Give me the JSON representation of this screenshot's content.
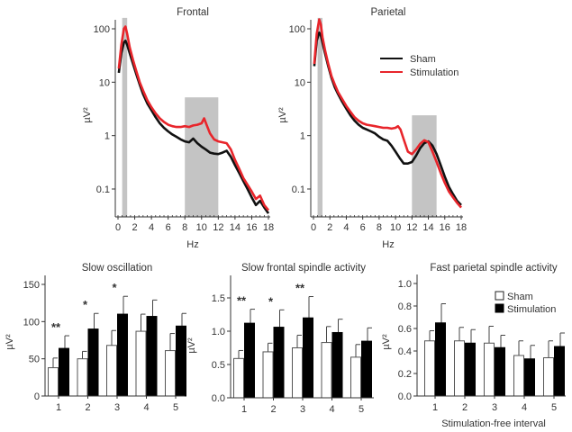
{
  "chart_data": [
    {
      "id": "frontal",
      "type": "line",
      "title": "Frontal",
      "xlabel": "Hz",
      "ylabel": "µV²",
      "yscale": "log",
      "xlim": [
        0,
        18
      ],
      "ylim": [
        0.03,
        160
      ],
      "xticks": [
        "0",
        "2",
        "4",
        "6",
        "8",
        "10",
        "12",
        "14",
        "16",
        "18"
      ],
      "yticks": [
        {
          "v": 100,
          "label": "100"
        },
        {
          "v": 10,
          "label": "10"
        },
        {
          "v": 1,
          "label": "1"
        },
        {
          "v": 0.1,
          "label": "0.1"
        }
      ],
      "shaded_bands": [
        {
          "x0": 0.5,
          "x1": 1.1,
          "ytop": 160
        },
        {
          "x0": 8,
          "x1": 12,
          "ytop": 5.2
        }
      ],
      "series": [
        {
          "name": "Sham",
          "color": "#111111",
          "x": [
            0.1,
            0.4,
            0.7,
            0.9,
            1.1,
            1.4,
            1.8,
            2.2,
            2.6,
            3,
            3.5,
            4,
            4.5,
            5,
            5.5,
            6,
            6.5,
            7,
            7.5,
            8,
            8.5,
            9,
            9.5,
            10,
            10.5,
            11,
            11.5,
            12,
            12.5,
            13,
            13.5,
            14,
            14.5,
            15,
            15.5,
            16,
            16.5,
            17,
            17.5,
            18
          ],
          "y": [
            15,
            35,
            55,
            60,
            50,
            35,
            22,
            14,
            9,
            6,
            4,
            3,
            2.2,
            1.7,
            1.4,
            1.2,
            1.05,
            0.95,
            0.85,
            0.78,
            0.75,
            0.88,
            0.72,
            0.62,
            0.55,
            0.48,
            0.46,
            0.45,
            0.48,
            0.52,
            0.4,
            0.28,
            0.2,
            0.14,
            0.1,
            0.07,
            0.05,
            0.06,
            0.045,
            0.035
          ]
        },
        {
          "name": "Stimulation",
          "color": "#e8252b",
          "x": [
            0.1,
            0.4,
            0.7,
            0.9,
            1.1,
            1.4,
            1.8,
            2.2,
            2.6,
            3,
            3.5,
            4,
            4.5,
            5,
            5.5,
            6,
            6.5,
            7,
            7.5,
            8,
            8.5,
            9,
            9.5,
            10,
            10.3,
            10.6,
            11,
            11.5,
            12,
            12.5,
            13,
            13.5,
            14,
            14.5,
            15,
            15.5,
            16,
            16.5,
            17,
            17.5,
            18
          ],
          "y": [
            18,
            50,
            100,
            110,
            80,
            45,
            26,
            16,
            10,
            7,
            4.6,
            3.4,
            2.6,
            2.1,
            1.8,
            1.6,
            1.5,
            1.45,
            1.45,
            1.5,
            1.45,
            1.55,
            1.6,
            1.7,
            2.1,
            1.6,
            1.1,
            0.85,
            0.78,
            0.75,
            0.72,
            0.55,
            0.35,
            0.24,
            0.16,
            0.12,
            0.09,
            0.065,
            0.075,
            0.05,
            0.04
          ]
        }
      ]
    },
    {
      "id": "parietal",
      "type": "line",
      "title": "Parietal",
      "xlabel": "Hz",
      "ylabel": "µV²",
      "yscale": "log",
      "xlim": [
        0,
        18
      ],
      "ylim": [
        0.03,
        160
      ],
      "xticks": [
        "0",
        "2",
        "4",
        "6",
        "8",
        "10",
        "12",
        "14",
        "16",
        "18"
      ],
      "yticks": [
        {
          "v": 100,
          "label": "100"
        },
        {
          "v": 10,
          "label": "10"
        },
        {
          "v": 1,
          "label": "1"
        },
        {
          "v": 0.1,
          "label": "0.1"
        }
      ],
      "shaded_bands": [
        {
          "x0": 0.5,
          "x1": 1.1,
          "ytop": 160
        },
        {
          "x0": 12,
          "x1": 15,
          "ytop": 2.4
        }
      ],
      "legend": {
        "position": "top-right",
        "entries": [
          {
            "name": "Sham",
            "color": "#111111"
          },
          {
            "name": "Stimulation",
            "color": "#e8252b"
          }
        ]
      },
      "series": [
        {
          "name": "Sham",
          "color": "#111111",
          "x": [
            0.1,
            0.4,
            0.7,
            0.9,
            1.1,
            1.4,
            1.8,
            2.2,
            2.6,
            3,
            3.5,
            4,
            4.5,
            5,
            5.5,
            6,
            6.5,
            7,
            7.5,
            8,
            8.5,
            9,
            9.5,
            10,
            10.5,
            11,
            11.5,
            12,
            12.5,
            13,
            13.5,
            14,
            14.5,
            15,
            15.5,
            16,
            16.5,
            17,
            17.5,
            18
          ],
          "y": [
            20,
            60,
            85,
            75,
            55,
            35,
            20,
            12,
            8,
            6,
            4.3,
            3.2,
            2.4,
            1.9,
            1.6,
            1.4,
            1.3,
            1.2,
            1.1,
            0.95,
            0.85,
            0.8,
            0.65,
            0.5,
            0.38,
            0.3,
            0.3,
            0.32,
            0.42,
            0.58,
            0.72,
            0.78,
            0.65,
            0.45,
            0.28,
            0.17,
            0.11,
            0.08,
            0.06,
            0.05
          ]
        },
        {
          "name": "Stimulation",
          "color": "#e8252b",
          "x": [
            0.1,
            0.4,
            0.7,
            0.9,
            1.1,
            1.4,
            1.8,
            2.2,
            2.6,
            3,
            3.5,
            4,
            4.5,
            5,
            5.5,
            6,
            6.5,
            7,
            7.5,
            8,
            8.5,
            9,
            9.5,
            10,
            10.3,
            10.6,
            11,
            11.5,
            12,
            12.5,
            13,
            13.5,
            14,
            14.5,
            15,
            15.5,
            16,
            16.5,
            17,
            17.5,
            18
          ],
          "y": [
            22,
            80,
            150,
            120,
            70,
            40,
            22,
            13,
            9,
            6.5,
            4.8,
            3.6,
            2.8,
            2.2,
            1.9,
            1.7,
            1.6,
            1.55,
            1.5,
            1.45,
            1.4,
            1.4,
            1.35,
            1.4,
            1.5,
            1.3,
            0.85,
            0.5,
            0.45,
            0.55,
            0.7,
            0.82,
            0.75,
            0.5,
            0.32,
            0.2,
            0.13,
            0.09,
            0.07,
            0.055,
            0.045
          ]
        }
      ]
    },
    {
      "id": "slow-oscillation",
      "type": "bar",
      "title": "Slow oscillation",
      "xlabel": "",
      "ylabel": "µV²",
      "ylim": [
        0,
        160
      ],
      "yticks": [
        "0",
        "50",
        "100",
        "150"
      ],
      "ytick_values": [
        0,
        50,
        100,
        150
      ],
      "categories": [
        "1",
        "2",
        "3",
        "4",
        "5"
      ],
      "series": [
        {
          "name": "Sham",
          "fill": "#ffffff",
          "values": [
            38,
            50,
            68,
            87,
            61
          ],
          "errors": [
            13,
            10,
            20,
            23,
            23
          ]
        },
        {
          "name": "Stimulation",
          "fill": "#000000",
          "values": [
            64,
            90,
            110,
            107,
            94
          ],
          "errors": [
            17,
            21,
            24,
            22,
            17
          ]
        }
      ],
      "significance": [
        "**",
        "*",
        "*",
        "",
        ""
      ]
    },
    {
      "id": "slow-frontal-spindle",
      "type": "bar",
      "title": "Slow frontal spindle activity",
      "xlabel": "",
      "ylabel": "µV²",
      "ylim": [
        0,
        1.85
      ],
      "yticks": [
        "0.0",
        "0.5",
        "1.0",
        "1.5"
      ],
      "ytick_values": [
        0,
        0.5,
        1.0,
        1.5
      ],
      "categories": [
        "1",
        "2",
        "3",
        "4",
        "5"
      ],
      "series": [
        {
          "name": "Sham",
          "fill": "#ffffff",
          "values": [
            0.59,
            0.69,
            0.75,
            0.83,
            0.61
          ],
          "errors": [
            0.12,
            0.13,
            0.19,
            0.24,
            0.19
          ]
        },
        {
          "name": "Stimulation",
          "fill": "#000000",
          "values": [
            1.12,
            1.06,
            1.2,
            0.98,
            0.85
          ],
          "errors": [
            0.21,
            0.26,
            0.32,
            0.2,
            0.2
          ]
        }
      ],
      "significance": [
        "**",
        "*",
        "**",
        "",
        ""
      ]
    },
    {
      "id": "fast-parietal-spindle",
      "type": "bar",
      "title": "Fast parietal spindle activity",
      "xlabel": "Stimulation-free interval",
      "ylabel": "µV²",
      "ylim": [
        0,
        1.08
      ],
      "yticks": [
        "0.0",
        "0.2",
        "0.4",
        "0.6",
        "0.8",
        "1.0"
      ],
      "ytick_values": [
        0,
        0.2,
        0.4,
        0.6,
        0.8,
        1.0
      ],
      "categories": [
        "1",
        "2",
        "3",
        "4",
        "5"
      ],
      "legend": {
        "position": "top-right",
        "entries": [
          {
            "name": "Sham",
            "fill": "#ffffff"
          },
          {
            "name": "Stimulation",
            "fill": "#000000"
          }
        ]
      },
      "series": [
        {
          "name": "Sham",
          "fill": "#ffffff",
          "values": [
            0.49,
            0.49,
            0.47,
            0.36,
            0.34
          ],
          "errors": [
            0.09,
            0.12,
            0.15,
            0.13,
            0.15
          ]
        },
        {
          "name": "Stimulation",
          "fill": "#000000",
          "values": [
            0.65,
            0.47,
            0.43,
            0.33,
            0.44
          ],
          "errors": [
            0.17,
            0.12,
            0.11,
            0.12,
            0.12
          ]
        }
      ],
      "significance": [
        "",
        "",
        "",
        "",
        ""
      ]
    }
  ]
}
